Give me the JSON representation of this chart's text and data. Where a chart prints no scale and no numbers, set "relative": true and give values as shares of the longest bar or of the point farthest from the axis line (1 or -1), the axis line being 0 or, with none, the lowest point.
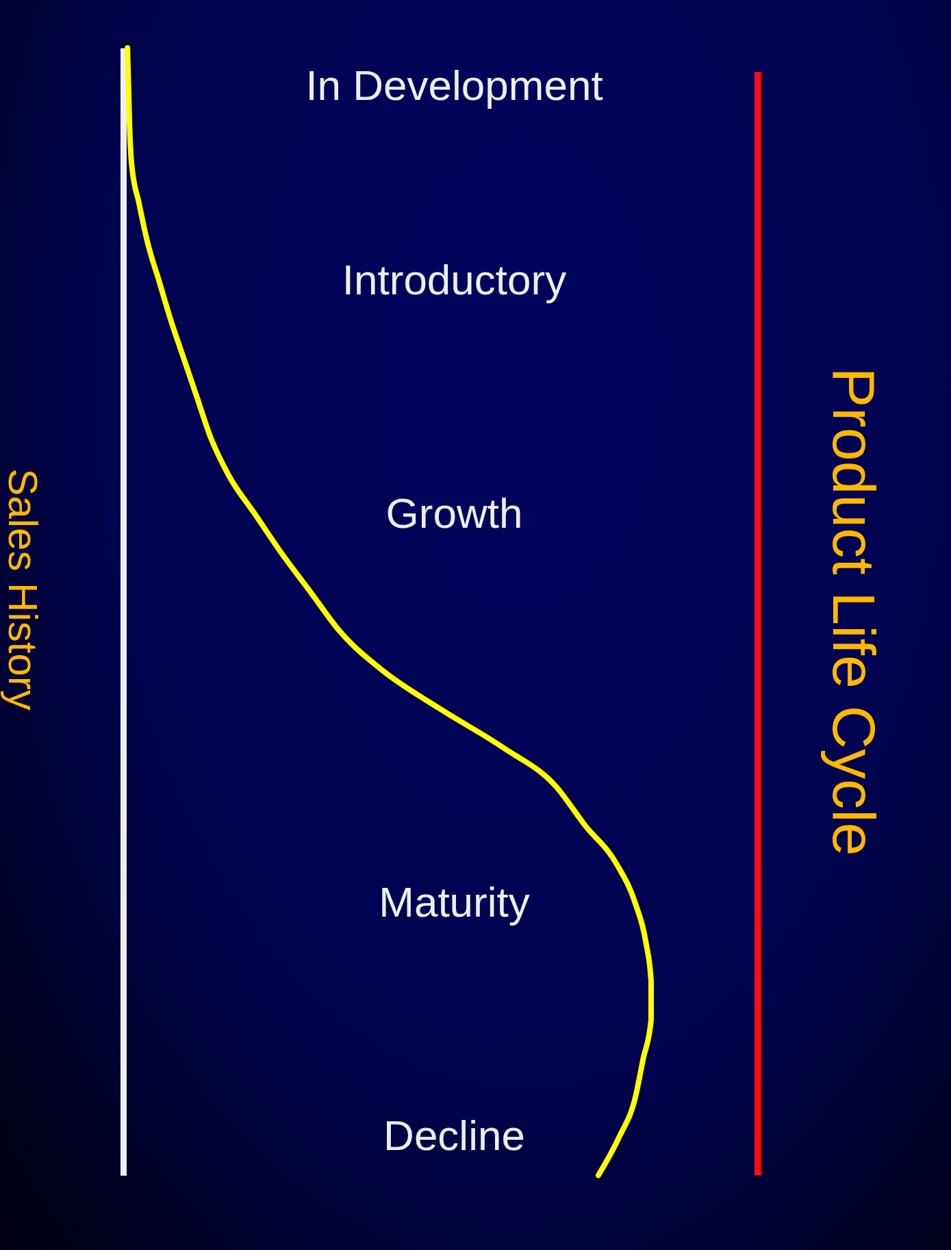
{
  "chart_data": {
    "type": "line",
    "title": "Product Life Cycle",
    "ylabel": "Sales History",
    "orientation": "horizontal",
    "relative": true,
    "line_style": "solid",
    "grid": false,
    "categories": [
      null,
      "In Development",
      null,
      null,
      null,
      null,
      "Introductory",
      null,
      null,
      null,
      null,
      null,
      "Growth",
      null,
      null,
      null,
      null,
      null,
      null,
      null,
      null,
      null,
      "Maturity",
      null,
      null,
      null,
      null,
      null,
      "Decline",
      null
    ],
    "series": [
      {
        "color": "#ffff00",
        "values": [
          0.008,
          0.01,
          0.012,
          0.016,
          0.03,
          0.046,
          0.068,
          0.09,
          0.115,
          0.14,
          0.165,
          0.2,
          0.25,
          0.3,
          0.355,
          0.41,
          0.49,
          0.6,
          0.72,
          0.82,
          0.875,
          0.935,
          0.97,
          0.99,
          1.0,
          1.0,
          0.985,
          0.97,
          0.94,
          0.9
        ]
      }
    ]
  }
}
